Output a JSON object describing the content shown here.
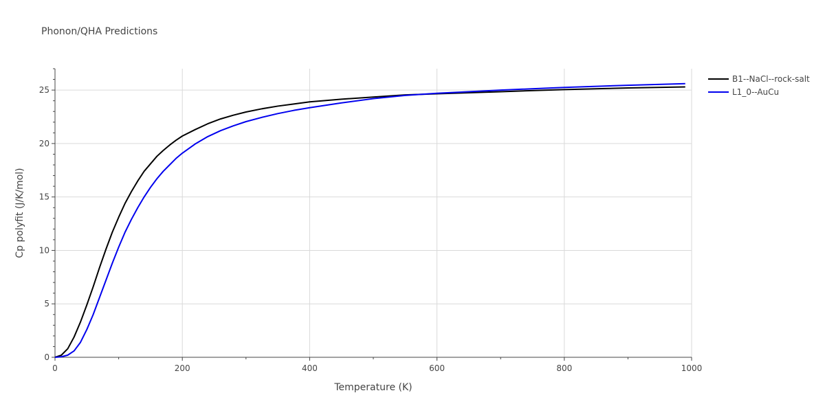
{
  "chart_data": {
    "type": "line",
    "title": "Phonon/QHA Predictions",
    "xlabel": "Temperature (K)",
    "ylabel": "Cp polyfit (J/K/mol)",
    "xlim": [
      0,
      1000
    ],
    "ylim": [
      0,
      27
    ],
    "xticks": [
      0,
      200,
      400,
      600,
      800,
      1000
    ],
    "yticks": [
      0,
      5,
      10,
      15,
      20,
      25
    ],
    "grid": true,
    "legend_position": "top-right",
    "series": [
      {
        "name": "B1--NaCl--rock-salt",
        "color": "#000000",
        "x": [
          0,
          10,
          20,
          30,
          40,
          50,
          60,
          70,
          80,
          90,
          100,
          110,
          120,
          130,
          140,
          150,
          160,
          170,
          180,
          190,
          200,
          220,
          240,
          260,
          280,
          300,
          325,
          350,
          375,
          400,
          450,
          500,
          550,
          600,
          650,
          700,
          800,
          900,
          990
        ],
        "y": [
          0,
          0.2,
          0.8,
          1.9,
          3.3,
          4.9,
          6.6,
          8.4,
          10.1,
          11.7,
          13.1,
          14.4,
          15.5,
          16.5,
          17.4,
          18.1,
          18.8,
          19.35,
          19.85,
          20.3,
          20.7,
          21.3,
          21.85,
          22.3,
          22.65,
          22.95,
          23.25,
          23.5,
          23.7,
          23.9,
          24.15,
          24.35,
          24.55,
          24.65,
          24.75,
          24.85,
          25.05,
          25.2,
          25.3
        ]
      },
      {
        "name": "L1_0--AuCu",
        "color": "#0000ee",
        "x": [
          0,
          10,
          20,
          30,
          40,
          50,
          60,
          70,
          80,
          90,
          100,
          110,
          120,
          130,
          140,
          150,
          160,
          170,
          180,
          190,
          200,
          220,
          240,
          260,
          280,
          300,
          325,
          350,
          375,
          400,
          450,
          500,
          550,
          600,
          650,
          700,
          800,
          900,
          990
        ],
        "y": [
          0,
          0.05,
          0.2,
          0.6,
          1.4,
          2.6,
          4.0,
          5.6,
          7.2,
          8.8,
          10.3,
          11.7,
          12.9,
          14.0,
          15.0,
          15.9,
          16.7,
          17.4,
          18.0,
          18.6,
          19.1,
          19.95,
          20.65,
          21.2,
          21.65,
          22.05,
          22.45,
          22.8,
          23.1,
          23.35,
          23.8,
          24.2,
          24.5,
          24.7,
          24.85,
          25.0,
          25.25,
          25.45,
          25.6
        ]
      }
    ]
  }
}
